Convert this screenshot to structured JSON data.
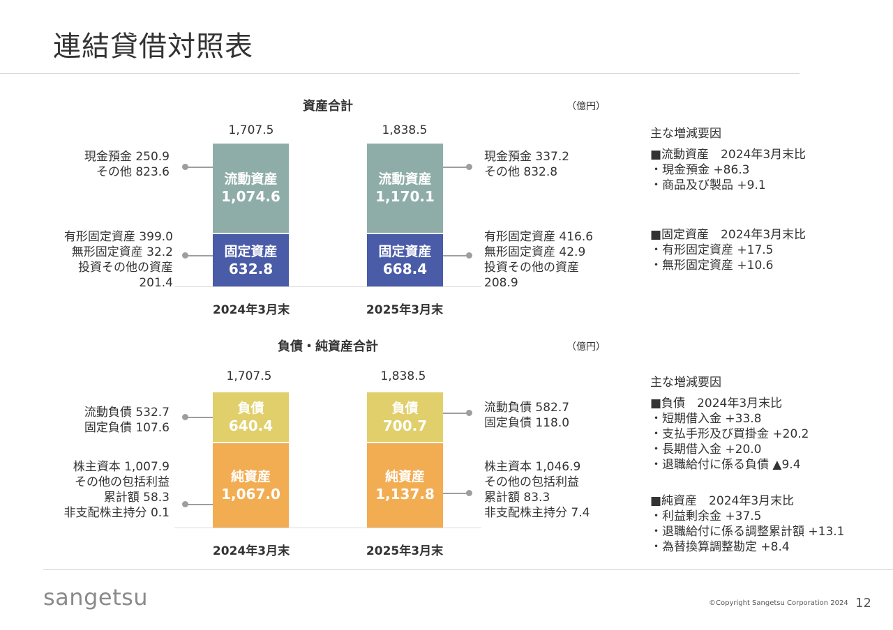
{
  "page": {
    "title": "連結貸借対照表",
    "logo": "sangetsu",
    "copyright": "©Copyright Sangetsu Corporation 2024",
    "page_number": "12"
  },
  "colors": {
    "current_assets": "#8fada8",
    "fixed_assets": "#4a5ba8",
    "liabilities": "#e0cf6a",
    "net_assets": "#f2ad52"
  },
  "chart_data": [
    {
      "type": "bar",
      "stacked": true,
      "title": "資産合計",
      "unit": "（億円）",
      "categories": [
        "2024年3月末",
        "2025年3月末"
      ],
      "totals": [
        "1,707.5",
        "1,838.5"
      ],
      "total_values": [
        1707.5,
        1838.5
      ],
      "series": [
        {
          "name": "固定資産",
          "values": [
            632.8,
            668.4
          ],
          "labels": [
            "632.8",
            "668.4"
          ]
        },
        {
          "name": "流動資産",
          "values": [
            1074.6,
            1170.1
          ],
          "labels": [
            "1,074.6",
            "1,170.1"
          ]
        }
      ],
      "annotations": {
        "left_top": [
          "現金預金 250.9",
          "その他 823.6"
        ],
        "left_bottom": [
          "有形固定資産 399.0",
          "無形固定資産 32.2",
          "投資その他の資産",
          "201.4"
        ],
        "right_top": [
          "現金預金 337.2",
          "その他 832.8"
        ],
        "right_bottom": [
          "有形固定資産 416.6",
          "無形固定資産 42.9",
          "投資その他の資産",
          "208.9"
        ]
      }
    },
    {
      "type": "bar",
      "stacked": true,
      "title": "負債・純資産合計",
      "unit": "（億円）",
      "categories": [
        "2024年3月末",
        "2025年3月末"
      ],
      "totals": [
        "1,707.5",
        "1,838.5"
      ],
      "total_values": [
        1707.5,
        1838.5
      ],
      "series": [
        {
          "name": "純資産",
          "values": [
            1067.0,
            1137.8
          ],
          "labels": [
            "1,067.0",
            "1,137.8"
          ]
        },
        {
          "name": "負債",
          "values": [
            640.4,
            700.7
          ],
          "labels": [
            "640.4",
            "700.7"
          ]
        }
      ],
      "annotations": {
        "left_top": [
          "流動負債 532.7",
          "固定負債 107.6"
        ],
        "left_bottom": [
          "株主資本 1,007.9",
          "その他の包括利益",
          "累計額 58.3",
          "非支配株主持分 0.1"
        ],
        "right_top": [
          "流動負債 582.7",
          "固定負債 118.0"
        ],
        "right_bottom": [
          "株主資本 1,046.9",
          "その他の包括利益",
          "累計額 83.3",
          "非支配株主持分 7.4"
        ]
      }
    }
  ],
  "factors": {
    "assets": {
      "heading": "主な増減要因",
      "groups": [
        {
          "title": "■流動資産　2024年3月末比",
          "items": [
            "・現金預金 +86.3",
            "・商品及び製品 +9.1"
          ]
        },
        {
          "title": "■固定資産　2024年3月末比",
          "items": [
            "・有形固定資産 +17.5",
            "・無形固定資産 +10.6"
          ]
        }
      ]
    },
    "liabilities": {
      "heading": "主な増減要因",
      "groups": [
        {
          "title": "■負債　2024年3月末比",
          "items": [
            "・短期借入金 +33.8",
            "・支払手形及び買掛金 +20.2",
            "・長期借入金 +20.0",
            "・退職給付に係る負債 ▲9.4"
          ]
        },
        {
          "title": "■純資産　2024年3月末比",
          "items": [
            "・利益剰余金 +37.5",
            "・退職給付に係る調整累計額 +13.1",
            "・為替換算調整勘定 +8.4"
          ]
        }
      ]
    }
  }
}
